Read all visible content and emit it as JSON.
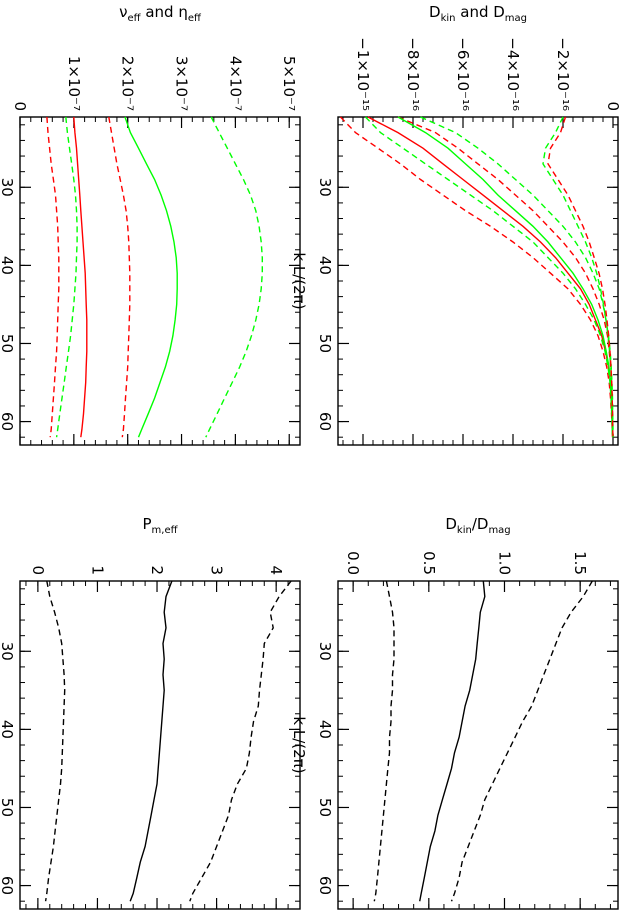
{
  "colors": {
    "kinetic": "#ff0000",
    "magnetic": "#00ff00",
    "ratio": "#000000"
  },
  "chart_data": [
    {
      "id": "dissipation",
      "type": "line",
      "xlabel": "k L/(2π)",
      "ylabel_main": "D",
      "ylabel_sub1": "kin",
      "ylabel_mid": " and D",
      "ylabel_sub2": "mag",
      "xlim": [
        21,
        63
      ],
      "ylim": [
        -1.1e-15,
        2e-17
      ],
      "xticks": [
        30,
        40,
        50,
        60
      ],
      "xticklabels": [
        "30",
        "40",
        "50",
        "60"
      ],
      "yticks": [
        -1e-15,
        -8e-16,
        -6e-16,
        -4e-16,
        -2e-16,
        0
      ],
      "yticklabels": [
        "−1×10⁻¹⁵",
        "−8×10⁻¹⁶",
        "−6×10⁻¹⁶",
        "−4×10⁻¹⁶",
        "−2×10⁻¹⁶",
        "0"
      ],
      "x": [
        21,
        23,
        25,
        27,
        29,
        31,
        33,
        35,
        37,
        39,
        41,
        43,
        45,
        47,
        49,
        51,
        53,
        55,
        57,
        59,
        61,
        62
      ],
      "series": [
        {
          "color": "#ff0000",
          "dash": false,
          "values": [
            -9.8,
            -8.6,
            -7.6,
            -6.8,
            -6.0,
            -5.2,
            -4.4,
            -3.6,
            -2.9,
            -2.3,
            -1.8,
            -1.3,
            -0.95,
            -0.7,
            -0.45,
            -0.3,
            -0.18,
            -0.1,
            -0.06,
            -0.04,
            -0.02,
            -0.01
          ]
        },
        {
          "color": "#ff0000",
          "dash": true,
          "values": [
            -10.9,
            -10.3,
            -9.4,
            -8.5,
            -7.7,
            -6.8,
            -5.9,
            -4.9,
            -4.0,
            -3.2,
            -2.5,
            -1.8,
            -1.3,
            -0.9,
            -0.6,
            -0.4,
            -0.25,
            -0.15,
            -0.1,
            -0.06,
            -0.03,
            -0.02
          ]
        },
        {
          "color": "#ff0000",
          "dash": true,
          "values": [
            -8.6,
            -7.1,
            -6.2,
            -5.4,
            -4.6,
            -3.9,
            -3.2,
            -2.6,
            -2.0,
            -1.5,
            -1.1,
            -0.8,
            -0.55,
            -0.35,
            -0.22,
            -0.15,
            -0.09,
            -0.05,
            -0.03,
            -0.02,
            -0.01,
            0
          ]
        },
        {
          "color": "#00ff00",
          "dash": false,
          "values": [
            -8.6,
            -7.5,
            -6.6,
            -5.9,
            -5.2,
            -4.6,
            -3.9,
            -3.2,
            -2.6,
            -2.1,
            -1.6,
            -1.2,
            -0.85,
            -0.6,
            -0.4,
            -0.27,
            -0.16,
            -0.1,
            -0.06,
            -0.03,
            -0.02,
            -0.01
          ]
        },
        {
          "color": "#00ff00",
          "dash": true,
          "values": [
            -9.9,
            -9.3,
            -8.4,
            -7.5,
            -6.6,
            -5.7,
            -4.8,
            -4.0,
            -3.2,
            -2.6,
            -2.0,
            -1.5,
            -1.1,
            -0.75,
            -0.5,
            -0.32,
            -0.2,
            -0.12,
            -0.08,
            -0.05,
            -0.03,
            -0.02
          ]
        },
        {
          "color": "#00ff00",
          "dash": true,
          "values": [
            -7.7,
            -6.3,
            -5.4,
            -4.6,
            -3.9,
            -3.2,
            -2.6,
            -2.0,
            -1.5,
            -1.1,
            -0.8,
            -0.55,
            -0.4,
            -0.28,
            -0.18,
            -0.11,
            -0.07,
            -0.04,
            -0.02,
            -0.01,
            0,
            0
          ]
        },
        {
          "color": "#00ff00",
          "dash": true,
          "values": [
            -2.0,
            -2.3,
            -2.7,
            -2.8,
            -2.4,
            -2.0,
            -1.7,
            -1.4,
            -1.1,
            -0.85,
            -0.65,
            -0.5,
            -0.38,
            -0.28,
            -0.2,
            -0.14,
            -0.09,
            -0.06,
            -0.04,
            -0.02,
            -0.01,
            0
          ]
        },
        {
          "color": "#ff0000",
          "dash": true,
          "values": [
            -1.9,
            -2.1,
            -2.5,
            -2.6,
            -2.2,
            -1.8,
            -1.5,
            -1.2,
            -0.95,
            -0.75,
            -0.56,
            -0.42,
            -0.32,
            -0.24,
            -0.17,
            -0.12,
            -0.08,
            -0.05,
            -0.03,
            -0.02,
            -0.01,
            0
          ]
        }
      ],
      "value_scale": 1e-16
    },
    {
      "id": "ratio",
      "type": "line",
      "xlabel": "k L/(2π)",
      "ylabel_main": "D",
      "ylabel_sub1": "kin",
      "ylabel_mid": "/D",
      "ylabel_sub2": "mag",
      "xlim": [
        21,
        63
      ],
      "ylim": [
        -0.1,
        1.75
      ],
      "xticks": [
        30,
        40,
        50,
        60
      ],
      "xticklabels": [
        "30",
        "40",
        "50",
        "60"
      ],
      "yticks": [
        0,
        0.5,
        1.0,
        1.5
      ],
      "yticklabels": [
        "0.0",
        "0.5",
        "1.0",
        "1.5"
      ],
      "x": [
        21,
        23,
        25,
        27,
        29,
        31,
        33,
        35,
        37,
        39,
        41,
        43,
        45,
        47,
        49,
        51,
        53,
        55,
        57,
        59,
        61,
        62
      ],
      "series": [
        {
          "color": "#000000",
          "dash": false,
          "values": [
            0.86,
            0.87,
            0.84,
            0.83,
            0.82,
            0.81,
            0.79,
            0.77,
            0.74,
            0.72,
            0.7,
            0.67,
            0.65,
            0.62,
            0.59,
            0.56,
            0.54,
            0.51,
            0.49,
            0.47,
            0.45,
            0.44
          ]
        },
        {
          "color": "#000000",
          "dash": true,
          "values": [
            1.58,
            1.52,
            1.44,
            1.38,
            1.34,
            1.3,
            1.26,
            1.22,
            1.18,
            1.12,
            1.07,
            1.02,
            0.97,
            0.92,
            0.87,
            0.84,
            0.8,
            0.76,
            0.72,
            0.7,
            0.67,
            0.65
          ]
        },
        {
          "color": "#000000",
          "dash": true,
          "values": [
            0.22,
            0.24,
            0.26,
            0.27,
            0.27,
            0.27,
            0.26,
            0.26,
            0.25,
            0.25,
            0.24,
            0.24,
            0.23,
            0.22,
            0.21,
            0.2,
            0.19,
            0.18,
            0.17,
            0.16,
            0.15,
            0.14
          ]
        }
      ],
      "value_scale": 1
    },
    {
      "id": "viscosity",
      "type": "line",
      "xlabel": "k L/(2π)",
      "ylabel_main": "ν",
      "ylabel_sub1": "eff",
      "ylabel_mid": " and η",
      "ylabel_sub2": "eff",
      "xlim": [
        21,
        63
      ],
      "ylim": [
        0,
        5.2e-07
      ],
      "xticks": [
        30,
        40,
        50,
        60
      ],
      "xticklabels": [
        "30",
        "40",
        "50",
        "60"
      ],
      "yticks": [
        0,
        1e-07,
        2e-07,
        3e-07,
        4e-07,
        5e-07
      ],
      "yticklabels": [
        "0",
        "1×10⁻⁷",
        "2×10⁻⁷",
        "3×10⁻⁷",
        "4×10⁻⁷",
        "5×10⁻⁷"
      ],
      "x": [
        21,
        23,
        25,
        27,
        29,
        31,
        33,
        35,
        37,
        39,
        41,
        43,
        45,
        47,
        49,
        51,
        53,
        55,
        57,
        59,
        61,
        62
      ],
      "series": [
        {
          "color": "#ff0000",
          "dash": false,
          "values": [
            1.0,
            1.02,
            1.05,
            1.07,
            1.09,
            1.11,
            1.13,
            1.15,
            1.17,
            1.19,
            1.21,
            1.22,
            1.23,
            1.24,
            1.24,
            1.24,
            1.23,
            1.22,
            1.2,
            1.18,
            1.15,
            1.13
          ]
        },
        {
          "color": "#ff0000",
          "dash": true,
          "values": [
            1.65,
            1.7,
            1.75,
            1.8,
            1.86,
            1.92,
            1.97,
            2.0,
            2.02,
            2.03,
            2.04,
            2.04,
            2.04,
            2.03,
            2.02,
            2.01,
            2.0,
            1.98,
            1.96,
            1.94,
            1.92,
            1.9
          ]
        },
        {
          "color": "#ff0000",
          "dash": true,
          "values": [
            0.5,
            0.52,
            0.55,
            0.58,
            0.62,
            0.66,
            0.68,
            0.7,
            0.71,
            0.72,
            0.72,
            0.72,
            0.71,
            0.7,
            0.69,
            0.68,
            0.66,
            0.64,
            0.62,
            0.6,
            0.58,
            0.56
          ]
        },
        {
          "color": "#00ff00",
          "dash": false,
          "values": [
            1.95,
            2.05,
            2.2,
            2.35,
            2.5,
            2.62,
            2.72,
            2.8,
            2.86,
            2.9,
            2.92,
            2.92,
            2.91,
            2.88,
            2.84,
            2.78,
            2.7,
            2.6,
            2.5,
            2.38,
            2.26,
            2.2
          ]
        },
        {
          "color": "#00ff00",
          "dash": true,
          "values": [
            3.55,
            3.7,
            3.85,
            4.0,
            4.15,
            4.28,
            4.38,
            4.44,
            4.48,
            4.5,
            4.5,
            4.48,
            4.44,
            4.38,
            4.3,
            4.2,
            4.08,
            3.94,
            3.8,
            3.66,
            3.52,
            3.45
          ]
        },
        {
          "color": "#00ff00",
          "dash": true,
          "values": [
            0.85,
            0.88,
            0.92,
            0.96,
            1.0,
            1.03,
            1.05,
            1.06,
            1.06,
            1.05,
            1.04,
            1.02,
            1.0,
            0.97,
            0.94,
            0.9,
            0.86,
            0.82,
            0.78,
            0.74,
            0.7,
            0.68
          ]
        }
      ],
      "value_scale": 1e-07
    },
    {
      "id": "prandtl",
      "type": "line",
      "xlabel": "k L/(2π)",
      "ylabel_main": "P",
      "ylabel_sub1": "m,eff",
      "ylabel_mid": "",
      "ylabel_sub2": "",
      "xlim": [
        21,
        63
      ],
      "ylim": [
        -0.3,
        4.4
      ],
      "xticks": [
        30,
        40,
        50,
        60
      ],
      "xticklabels": [
        "30",
        "40",
        "50",
        "60"
      ],
      "yticks": [
        0,
        1,
        2,
        3,
        4
      ],
      "yticklabels": [
        "0",
        "1",
        "2",
        "3",
        "4"
      ],
      "x": [
        21,
        23,
        25,
        27,
        29,
        31,
        33,
        35,
        37,
        39,
        41,
        43,
        45,
        47,
        49,
        51,
        53,
        55,
        57,
        59,
        61,
        62
      ],
      "series": [
        {
          "color": "#000000",
          "dash": false,
          "values": [
            2.25,
            2.15,
            2.12,
            2.15,
            2.1,
            2.12,
            2.1,
            2.12,
            2.1,
            2.08,
            2.06,
            2.04,
            2.02,
            2.0,
            1.95,
            1.9,
            1.85,
            1.8,
            1.72,
            1.66,
            1.6,
            1.55
          ]
        },
        {
          "color": "#000000",
          "dash": true,
          "values": [
            4.25,
            4.05,
            3.9,
            3.95,
            3.8,
            3.78,
            3.75,
            3.72,
            3.7,
            3.62,
            3.58,
            3.55,
            3.5,
            3.35,
            3.25,
            3.2,
            3.1,
            3.0,
            2.9,
            2.75,
            2.6,
            2.55
          ]
        },
        {
          "color": "#000000",
          "dash": true,
          "values": [
            0.15,
            0.2,
            0.28,
            0.35,
            0.4,
            0.42,
            0.44,
            0.45,
            0.44,
            0.43,
            0.42,
            0.41,
            0.4,
            0.38,
            0.35,
            0.32,
            0.29,
            0.26,
            0.22,
            0.18,
            0.15,
            0.13
          ]
        }
      ],
      "value_scale": 1
    }
  ]
}
